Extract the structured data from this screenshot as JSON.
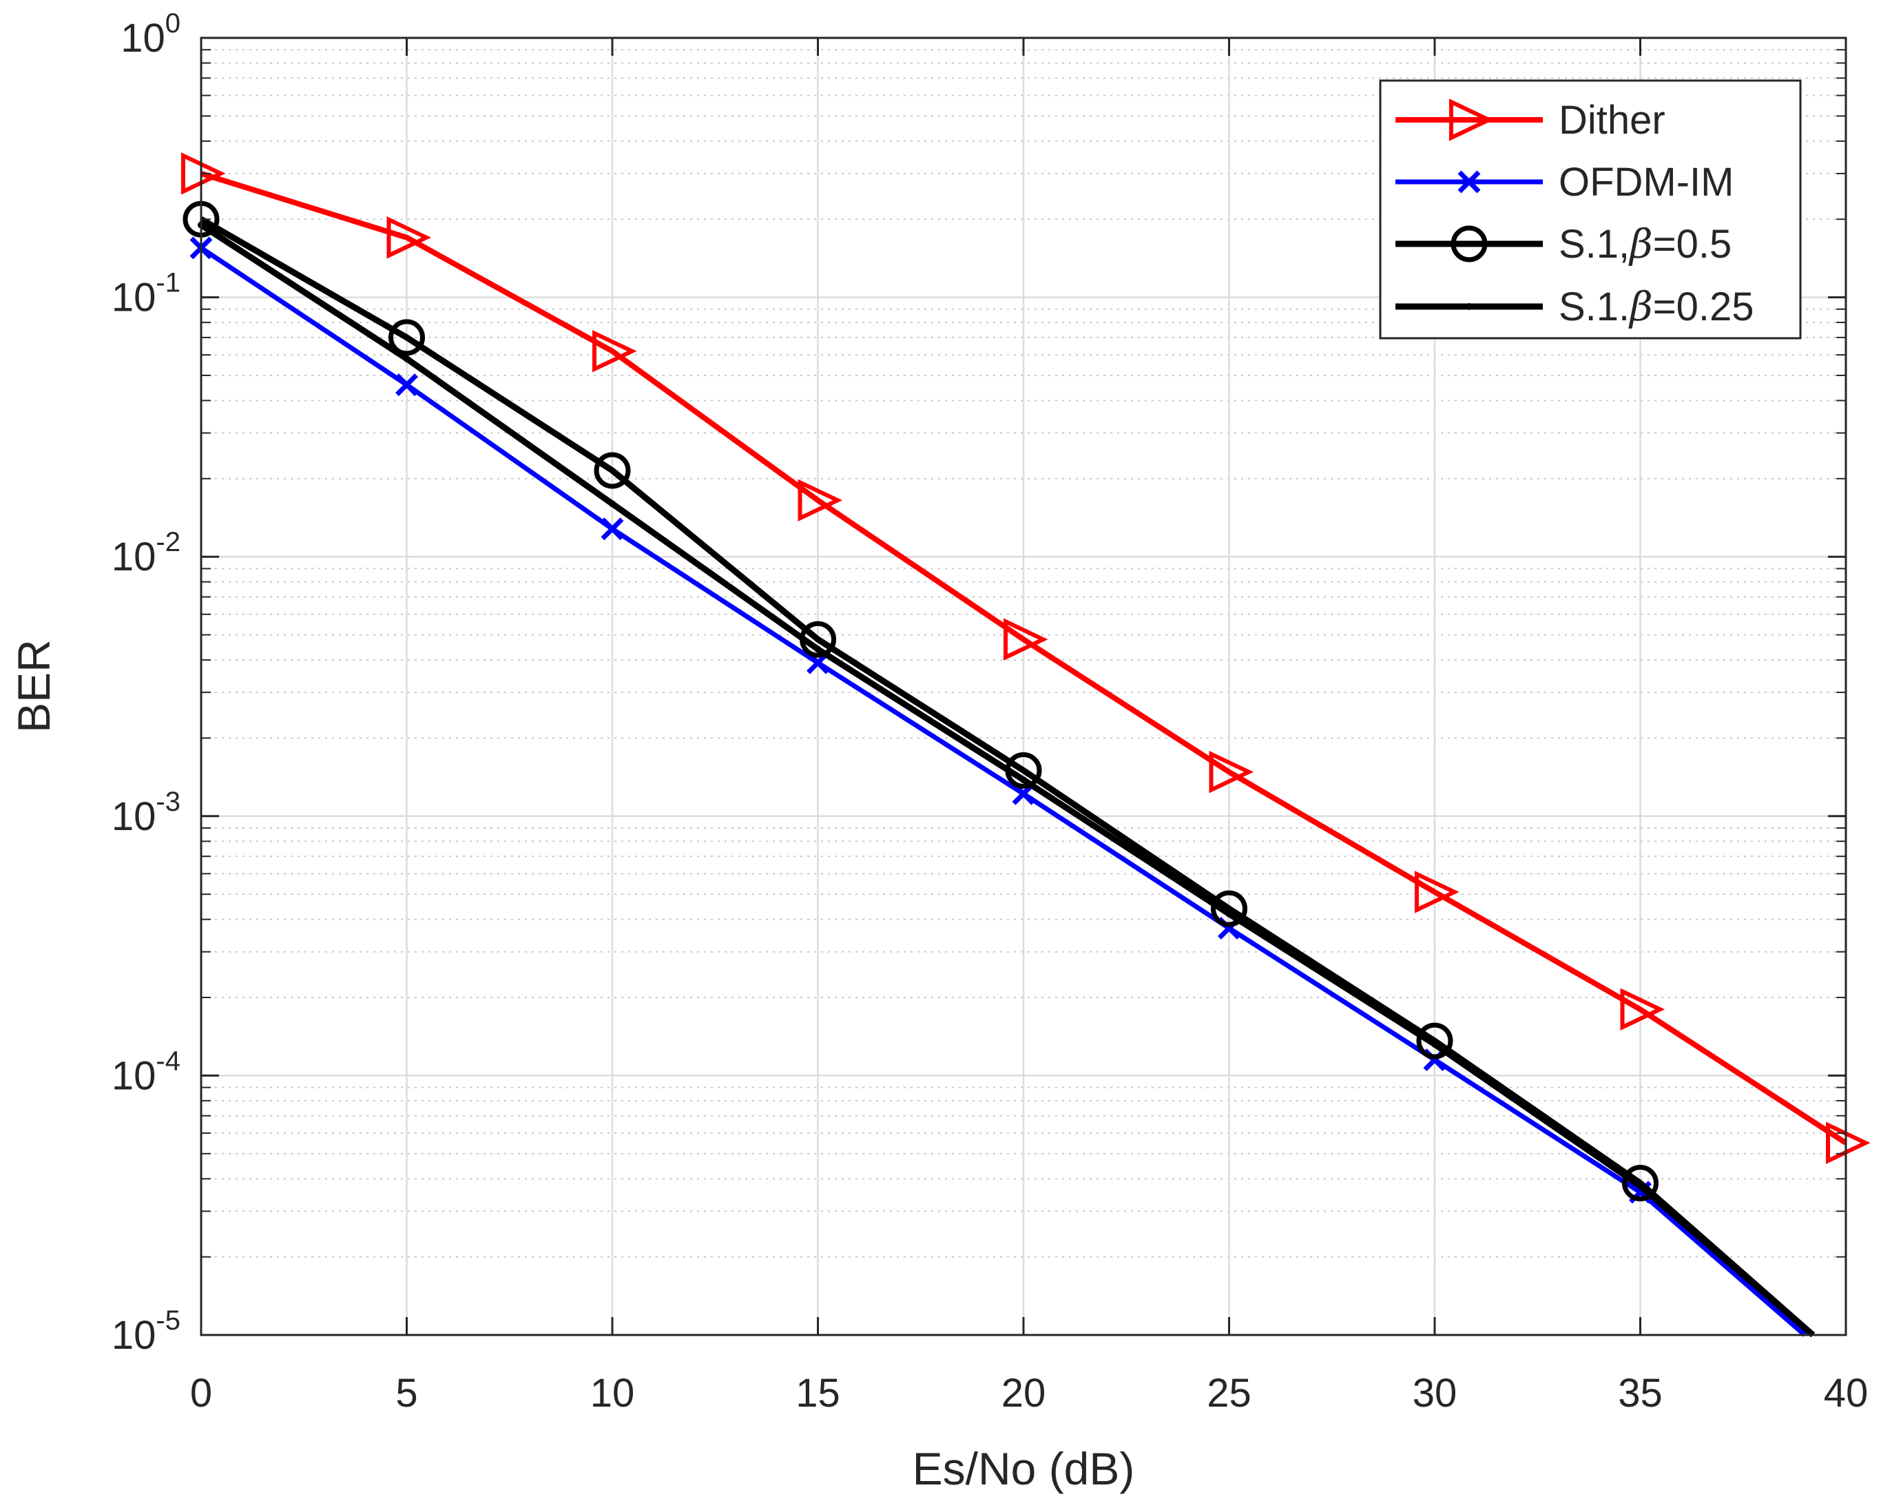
{
  "chart_data": {
    "type": "line",
    "title": "",
    "xlabel": "Es/No (dB)",
    "ylabel": "BER",
    "xlim": [
      0,
      40
    ],
    "ylim": [
      1e-05,
      1
    ],
    "yscale": "log",
    "grid": true,
    "minor_grid": true,
    "legend_position": "top-right",
    "x_ticks": [
      0,
      5,
      10,
      15,
      20,
      25,
      30,
      35,
      40
    ],
    "x_tick_labels": [
      "0",
      "5",
      "10",
      "15",
      "20",
      "25",
      "30",
      "35",
      "40"
    ],
    "y_ticks": [
      {
        "value": 1,
        "base": "10",
        "exp": "0"
      },
      {
        "value": 0.1,
        "base": "10",
        "exp": "-1"
      },
      {
        "value": 0.01,
        "base": "10",
        "exp": "-2"
      },
      {
        "value": 0.001,
        "base": "10",
        "exp": "-3"
      },
      {
        "value": 0.0001,
        "base": "10",
        "exp": "-4"
      },
      {
        "value": 1e-05,
        "base": "10",
        "exp": "-5"
      }
    ],
    "series": [
      {
        "name": "Dither",
        "legend_label": "Dither",
        "color": "#ff0000",
        "marker": "triangle-right",
        "x": [
          0,
          5,
          10,
          15,
          20,
          25,
          30,
          35,
          40
        ],
        "values": [
          0.3,
          0.17,
          0.062,
          0.0165,
          0.0048,
          0.00148,
          0.00051,
          0.00018,
          5.5e-05
        ]
      },
      {
        "name": "OFDM-IM",
        "legend_label": "OFDM-IM",
        "color": "#0000ff",
        "marker": "x",
        "x": [
          0,
          5,
          10,
          15,
          20,
          25,
          30,
          35,
          39
        ],
        "values": [
          0.155,
          0.046,
          0.0128,
          0.0039,
          0.00122,
          0.00037,
          0.000115,
          3.55e-05,
          1e-05
        ]
      },
      {
        "name": "S.1,β=0.5",
        "legend_prefix": "S.1,",
        "legend_symbol": "β",
        "legend_suffix": "=0.5",
        "color": "#000000",
        "marker": "circle",
        "x": [
          0,
          5,
          10,
          15,
          20,
          25,
          30,
          35,
          39.2
        ],
        "values": [
          0.2,
          0.07,
          0.0215,
          0.0048,
          0.0015,
          0.00044,
          0.000136,
          3.85e-05,
          1e-05
        ]
      },
      {
        "name": "S.1.β=0.25",
        "legend_prefix": "S.1.",
        "legend_symbol": "β",
        "legend_suffix": "=0.25",
        "color": "#000000",
        "marker": "point",
        "x": [
          0,
          5,
          10,
          15,
          20,
          25,
          30,
          35,
          39.2
        ],
        "values": [
          0.19,
          0.058,
          0.016,
          0.0044,
          0.00138,
          0.00042,
          0.000132,
          3.75e-05,
          1e-05
        ]
      }
    ]
  }
}
